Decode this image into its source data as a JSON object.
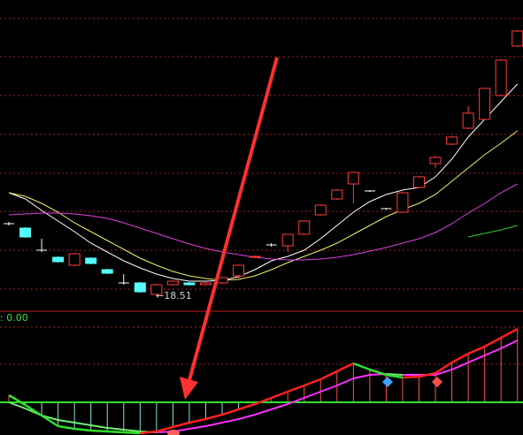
{
  "chart_data": [
    {
      "type": "candlestick",
      "up_color": "#ff3c3c",
      "down_color": "#54ffff",
      "doji_color": "#ffffff",
      "ylim": [
        17.65,
        35.25
      ],
      "open": [
        22.6,
        22.35,
        21.1,
        20.7,
        20.25,
        20.65,
        20.0,
        19.25,
        19.25,
        18.6,
        19.15,
        19.25,
        19.15,
        19.25,
        19.65,
        20.7,
        21.4,
        21.35,
        22.0,
        23.1,
        24.0,
        24.85,
        24.45,
        23.45,
        23.25,
        24.65,
        26.0,
        27.1,
        28.0,
        28.5,
        29.85,
        32.65
      ],
      "high": [
        22.7,
        22.4,
        21.75,
        20.75,
        20.95,
        20.7,
        20.05,
        19.75,
        19.3,
        19.2,
        19.4,
        19.3,
        19.3,
        19.6,
        20.3,
        20.8,
        21.5,
        22.0,
        22.8,
        23.7,
        24.55,
        25.5,
        24.5,
        23.5,
        24.4,
        25.3,
        26.45,
        27.55,
        29.25,
        30.3,
        31.9,
        33.55
      ],
      "low": [
        22.5,
        21.8,
        21.0,
        20.4,
        20.2,
        20.3,
        19.75,
        19.15,
        18.7,
        18.51,
        19.1,
        19.1,
        19.1,
        19.2,
        19.5,
        20.65,
        21.3,
        21.0,
        21.95,
        23.05,
        23.95,
        23.75,
        24.4,
        23.4,
        23.2,
        24.6,
        25.75,
        27.05,
        27.95,
        28.45,
        29.8,
        32.6
      ],
      "close": [
        22.6,
        21.85,
        21.1,
        20.45,
        20.9,
        20.35,
        19.8,
        19.25,
        18.75,
        19.15,
        19.35,
        19.15,
        19.25,
        19.55,
        20.25,
        20.75,
        21.4,
        22.0,
        22.75,
        23.65,
        24.5,
        25.5,
        24.45,
        23.45,
        24.35,
        25.25,
        26.35,
        27.5,
        28.85,
        30.25,
        31.85,
        33.5
      ],
      "low_label": "←18.51",
      "series": [
        {
          "color": "#ffffff",
          "values": [
            24.35,
            24.0,
            23.35,
            22.75,
            22.15,
            21.5,
            21.0,
            20.5,
            20.1,
            19.75,
            19.5,
            19.35,
            19.35,
            19.4,
            19.6,
            20.0,
            20.5,
            20.75,
            21.1,
            21.75,
            22.5,
            23.25,
            23.85,
            24.25,
            24.5,
            24.65,
            25.25,
            26.25,
            27.5,
            28.5,
            29.5,
            30.5
          ]
        },
        {
          "color": "#f0f064",
          "values": [
            24.35,
            24.15,
            23.75,
            23.25,
            22.65,
            22.15,
            21.65,
            21.15,
            20.65,
            20.25,
            19.9,
            19.65,
            19.5,
            19.4,
            19.45,
            19.65,
            20.0,
            20.4,
            20.75,
            21.1,
            21.5,
            22.0,
            22.5,
            23.0,
            23.4,
            23.75,
            24.25,
            25.0,
            25.75,
            26.5,
            27.15,
            27.85
          ]
        },
        {
          "color": "#e040e0",
          "values": [
            23.1,
            23.15,
            23.2,
            23.2,
            23.15,
            23.05,
            22.9,
            22.65,
            22.35,
            22.05,
            21.75,
            21.45,
            21.2,
            21.0,
            20.85,
            20.7,
            20.6,
            20.55,
            20.55,
            20.6,
            20.7,
            20.85,
            21.05,
            21.25,
            21.5,
            21.75,
            22.1,
            22.6,
            23.2,
            23.75,
            24.35,
            24.85
          ]
        },
        {
          "color": "#30d030",
          "values": [
            null,
            null,
            null,
            null,
            null,
            null,
            null,
            null,
            null,
            null,
            null,
            null,
            null,
            null,
            null,
            null,
            null,
            null,
            null,
            null,
            null,
            null,
            null,
            null,
            null,
            null,
            null,
            null,
            21.85,
            22.05,
            22.25,
            22.5
          ]
        }
      ]
    },
    {
      "type": "line",
      "label": ": 0.00",
      "ylim": [
        -0.37,
        1.03
      ],
      "zero_color": "#30e030",
      "series": [
        {
          "color": "#ff2020",
          "down_color": "#30e030",
          "stem_up": "#ff5050",
          "stem_down": "#80e8e8",
          "values": [
            0.08,
            -0.03,
            -0.15,
            -0.27,
            -0.3,
            -0.32,
            -0.33,
            -0.34,
            -0.35,
            -0.33,
            -0.28,
            -0.23,
            -0.19,
            -0.14,
            -0.08,
            -0.02,
            0.05,
            0.12,
            0.19,
            0.26,
            0.35,
            0.44,
            0.37,
            0.31,
            0.28,
            0.29,
            0.33,
            0.45,
            0.55,
            0.63,
            0.73,
            0.83
          ]
        },
        {
          "color": "#ff30ff",
          "down_color": "#70f070",
          "values": [
            0,
            -0.07,
            -0.15,
            -0.2,
            -0.23,
            -0.26,
            -0.29,
            -0.31,
            -0.33,
            -0.34,
            -0.33,
            -0.3,
            -0.27,
            -0.23,
            -0.19,
            -0.14,
            -0.08,
            -0.02,
            0.05,
            0.12,
            0.19,
            0.27,
            0.31,
            0.32,
            0.31,
            0.31,
            0.31,
            0.37,
            0.45,
            0.53,
            0.61,
            0.7
          ]
        }
      ]
    }
  ]
}
